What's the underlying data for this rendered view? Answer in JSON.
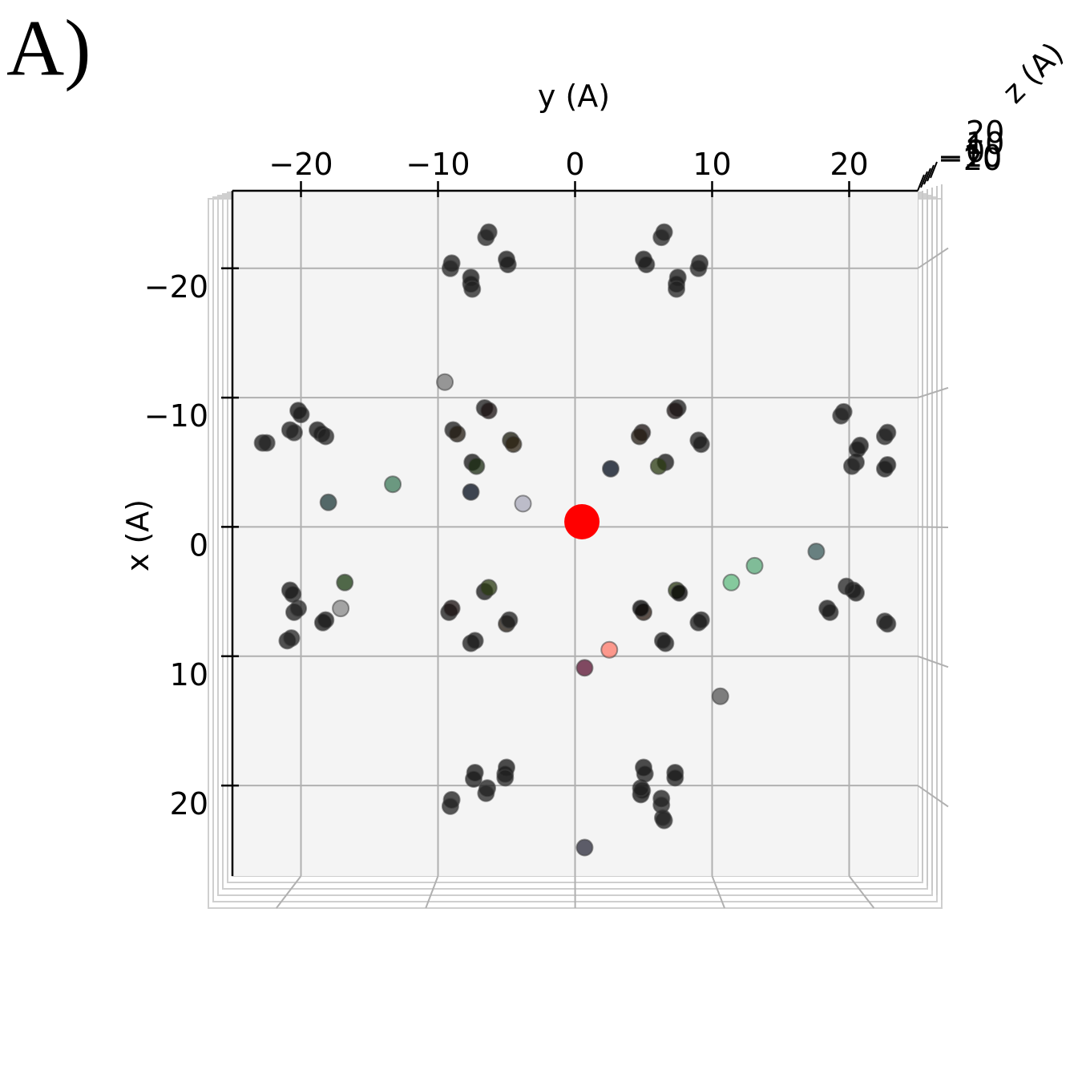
{
  "panel_label": "A)",
  "chart_data": {
    "type": "scatter",
    "projection": "3d-top-down",
    "xlabel": "x (A)",
    "ylabel": "y (A)",
    "zlabel": "z (A)",
    "y_axis_horizontal": {
      "label": "y (A)",
      "ticks": [
        -20,
        -10,
        0,
        10,
        20
      ],
      "tick_labels": [
        "−20",
        "−10",
        "0",
        "10",
        "20"
      ],
      "range": [
        -25,
        25
      ]
    },
    "x_axis_vertical": {
      "label": "x (A)",
      "ticks": [
        -20,
        -10,
        0,
        10,
        20
      ],
      "tick_labels": [
        "−20",
        "−10",
        "0",
        "10",
        "20"
      ],
      "range": [
        -26,
        27
      ],
      "inverted": true
    },
    "z_axis": {
      "label": "z (A)",
      "tick_labels": [
        "20",
        "10",
        "0",
        "−10",
        "−20"
      ]
    },
    "grid": true,
    "highlight": {
      "x": -0.4,
      "y": 0.5,
      "color": "#ff0000"
    },
    "points": [
      {
        "x": -22.8,
        "y": -6.3,
        "c": "#1a1a1a"
      },
      {
        "x": -22.4,
        "y": -6.5,
        "c": "#222"
      },
      {
        "x": -20.4,
        "y": -9.0,
        "c": "#1a1a1a"
      },
      {
        "x": -20.0,
        "y": -9.1,
        "c": "#222"
      },
      {
        "x": -20.7,
        "y": -5.0,
        "c": "#111"
      },
      {
        "x": -20.3,
        "y": -4.9,
        "c": "#1a1a1a"
      },
      {
        "x": -19.3,
        "y": -7.6,
        "c": "#111"
      },
      {
        "x": -18.8,
        "y": -7.6,
        "c": "#1a1a1a"
      },
      {
        "x": -18.4,
        "y": -7.5,
        "c": "#222"
      },
      {
        "x": -22.8,
        "y": 6.5,
        "c": "#1a1a1a"
      },
      {
        "x": -22.4,
        "y": 6.3,
        "c": "#222"
      },
      {
        "x": -20.4,
        "y": 9.1,
        "c": "#1a1a1a"
      },
      {
        "x": -20.0,
        "y": 9.0,
        "c": "#222"
      },
      {
        "x": -20.7,
        "y": 5.0,
        "c": "#111"
      },
      {
        "x": -20.3,
        "y": 5.2,
        "c": "#1a1a1a"
      },
      {
        "x": -19.3,
        "y": 7.5,
        "c": "#111"
      },
      {
        "x": -18.8,
        "y": 7.4,
        "c": "#1a1a1a"
      },
      {
        "x": -18.4,
        "y": 7.4,
        "c": "#222"
      },
      {
        "x": 20.2,
        "y": -6.4,
        "c": "#1a1a1a"
      },
      {
        "x": 20.6,
        "y": -6.5,
        "c": "#222"
      },
      {
        "x": 21.1,
        "y": -9.0,
        "c": "#1a1a1a"
      },
      {
        "x": 21.6,
        "y": -9.1,
        "c": "#222"
      },
      {
        "x": 19.0,
        "y": -7.3,
        "c": "#111"
      },
      {
        "x": 19.5,
        "y": -7.4,
        "c": "#1a1a1a"
      },
      {
        "x": 18.6,
        "y": -5.0,
        "c": "#111"
      },
      {
        "x": 19.1,
        "y": -5.1,
        "c": "#1a1a1a"
      },
      {
        "x": 19.4,
        "y": -5.1,
        "c": "#222"
      },
      {
        "x": 19.0,
        "y": 7.3,
        "c": "#111"
      },
      {
        "x": 19.4,
        "y": 7.3,
        "c": "#1a1a1a"
      },
      {
        "x": 21.0,
        "y": 6.3,
        "c": "#1a1a1a"
      },
      {
        "x": 21.5,
        "y": 6.3,
        "c": "#222"
      },
      {
        "x": 20.7,
        "y": 4.8,
        "c": "#111"
      },
      {
        "x": 20.4,
        "y": 4.9,
        "c": "#1a1a1a"
      },
      {
        "x": 20.2,
        "y": 4.8,
        "c": "#222"
      },
      {
        "x": 18.6,
        "y": 5.0,
        "c": "#111"
      },
      {
        "x": 19.1,
        "y": 5.1,
        "c": "#1a1a1a"
      },
      {
        "x": 22.7,
        "y": 6.5,
        "c": "#1a1a1a"
      },
      {
        "x": 22.5,
        "y": 6.4,
        "c": "#222"
      },
      {
        "x": -7.5,
        "y": -20.8,
        "c": "#1a1a1a"
      },
      {
        "x": -7.3,
        "y": -20.5,
        "c": "#222"
      },
      {
        "x": -6.5,
        "y": -22.8,
        "c": "#1a1a1a"
      },
      {
        "x": -6.5,
        "y": -22.5,
        "c": "#222"
      },
      {
        "x": -9.0,
        "y": -20.2,
        "c": "#111"
      },
      {
        "x": -8.7,
        "y": -20.0,
        "c": "#1a1a1a"
      },
      {
        "x": -7.5,
        "y": -18.8,
        "c": "#111"
      },
      {
        "x": -7.2,
        "y": -18.5,
        "c": "#1a1a1a"
      },
      {
        "x": -7.0,
        "y": -18.2,
        "c": "#222"
      },
      {
        "x": -5.0,
        "y": 20.5,
        "c": "#1a1a1a"
      },
      {
        "x": -4.7,
        "y": 20.2,
        "c": "#222"
      },
      {
        "x": -7.3,
        "y": 22.8,
        "c": "#1a1a1a"
      },
      {
        "x": -7.0,
        "y": 22.6,
        "c": "#222"
      },
      {
        "x": -6.3,
        "y": 20.8,
        "c": "#111"
      },
      {
        "x": -6.0,
        "y": 20.6,
        "c": "#1a1a1a"
      },
      {
        "x": -4.8,
        "y": 22.8,
        "c": "#111"
      },
      {
        "x": -4.5,
        "y": 22.6,
        "c": "#1a1a1a"
      },
      {
        "x": -8.9,
        "y": 19.6,
        "c": "#1a1a1a"
      },
      {
        "x": -8.6,
        "y": 19.4,
        "c": "#222"
      },
      {
        "x": 6.6,
        "y": -20.5,
        "c": "#1a1a1a"
      },
      {
        "x": 6.3,
        "y": -20.2,
        "c": "#222"
      },
      {
        "x": 8.8,
        "y": -21.0,
        "c": "#1a1a1a"
      },
      {
        "x": 8.6,
        "y": -20.7,
        "c": "#222"
      },
      {
        "x": 4.9,
        "y": -20.8,
        "c": "#111"
      },
      {
        "x": 5.2,
        "y": -20.6,
        "c": "#1a1a1a"
      },
      {
        "x": 7.4,
        "y": -18.4,
        "c": "#111"
      },
      {
        "x": 7.2,
        "y": -18.2,
        "c": "#1a1a1a"
      },
      {
        "x": 7.5,
        "y": 22.8,
        "c": "#1a1a1a"
      },
      {
        "x": 7.3,
        "y": 22.6,
        "c": "#222"
      },
      {
        "x": 5.1,
        "y": 20.5,
        "c": "#111"
      },
      {
        "x": 4.9,
        "y": 20.3,
        "c": "#1a1a1a"
      },
      {
        "x": 6.3,
        "y": 18.4,
        "c": "#111"
      },
      {
        "x": 6.6,
        "y": 18.6,
        "c": "#1a1a1a"
      },
      {
        "x": 4.6,
        "y": 19.8,
        "c": "#222"
      },
      {
        "x": -7.5,
        "y": -8.9,
        "c": "#1a1a1a"
      },
      {
        "x": -7.2,
        "y": -8.6,
        "c": "#221a10"
      },
      {
        "x": -9.2,
        "y": -6.6,
        "c": "#1a1a1a"
      },
      {
        "x": -9.0,
        "y": -6.3,
        "c": "#1a1010"
      },
      {
        "x": -6.7,
        "y": -4.7,
        "c": "#1a1a0a"
      },
      {
        "x": -6.4,
        "y": -4.5,
        "c": "#2a2010"
      },
      {
        "x": -5.0,
        "y": -7.5,
        "c": "#111"
      },
      {
        "x": -4.7,
        "y": -7.2,
        "c": "#1a2a10"
      },
      {
        "x": -7.3,
        "y": 4.9,
        "c": "#1a1010"
      },
      {
        "x": -7.0,
        "y": 4.7,
        "c": "#221a10"
      },
      {
        "x": -9.2,
        "y": 7.5,
        "c": "#1a1a1a"
      },
      {
        "x": -9.0,
        "y": 7.3,
        "c": "#1a1010"
      },
      {
        "x": -6.7,
        "y": 9.0,
        "c": "#1a1a1a"
      },
      {
        "x": -6.4,
        "y": 9.2,
        "c": "#1a1a1a"
      },
      {
        "x": -5.0,
        "y": 6.6,
        "c": "#111"
      },
      {
        "x": -4.7,
        "y": 6.1,
        "c": "#2a3a10"
      },
      {
        "x": 6.6,
        "y": -9.2,
        "c": "#1a1a1a"
      },
      {
        "x": 6.3,
        "y": -9.0,
        "c": "#1a1010"
      },
      {
        "x": 5.0,
        "y": -6.6,
        "c": "#111"
      },
      {
        "x": 4.7,
        "y": -6.3,
        "c": "#2a3a10"
      },
      {
        "x": 7.5,
        "y": -5.0,
        "c": "#221a10"
      },
      {
        "x": 7.2,
        "y": -4.8,
        "c": "#1a1a1a"
      },
      {
        "x": 9.0,
        "y": -7.6,
        "c": "#1a1a1a"
      },
      {
        "x": 8.8,
        "y": -7.3,
        "c": "#1a1a1a"
      },
      {
        "x": 6.6,
        "y": 5.0,
        "c": "#2a1a10"
      },
      {
        "x": 6.3,
        "y": 4.8,
        "c": "#000"
      },
      {
        "x": 4.9,
        "y": 7.4,
        "c": "#2a3a10"
      },
      {
        "x": 5.1,
        "y": 7.6,
        "c": "#000"
      },
      {
        "x": 7.4,
        "y": 9.0,
        "c": "#1a1a1a"
      },
      {
        "x": 7.2,
        "y": 9.2,
        "c": "#1a1a1a"
      },
      {
        "x": 9.0,
        "y": 6.6,
        "c": "#1a1a1a"
      },
      {
        "x": 8.8,
        "y": 6.4,
        "c": "#1a1a1a"
      },
      {
        "x": -11.2,
        "y": -9.5,
        "c": "#777"
      },
      {
        "x": -3.3,
        "y": -13.3,
        "c": "#3d7a5a"
      },
      {
        "x": -2.7,
        "y": -7.6,
        "c": "#000a1a"
      },
      {
        "x": -1.8,
        "y": -3.8,
        "c": "#aab"
      },
      {
        "x": -4.5,
        "y": 2.6,
        "c": "#000a1a"
      },
      {
        "x": -1.9,
        "y": -18.0,
        "c": "#1f3a3a"
      },
      {
        "x": 1.9,
        "y": 17.6,
        "c": "#3a5a5a"
      },
      {
        "x": 3.0,
        "y": 13.1,
        "c": "#5aaa7a"
      },
      {
        "x": 4.3,
        "y": 11.4,
        "c": "#60bb80"
      },
      {
        "x": 4.3,
        "y": -16.8,
        "c": "#1a3a10"
      },
      {
        "x": 6.3,
        "y": -17.1,
        "c": "#888"
      },
      {
        "x": 9.5,
        "y": 2.5,
        "c": "#ff7a6a"
      },
      {
        "x": 10.9,
        "y": 0.7,
        "c": "#5a1030"
      },
      {
        "x": 13.1,
        "y": 10.6,
        "c": "#555"
      },
      {
        "x": 24.8,
        "y": 0.7,
        "c": "#2a2a3a"
      }
    ]
  }
}
